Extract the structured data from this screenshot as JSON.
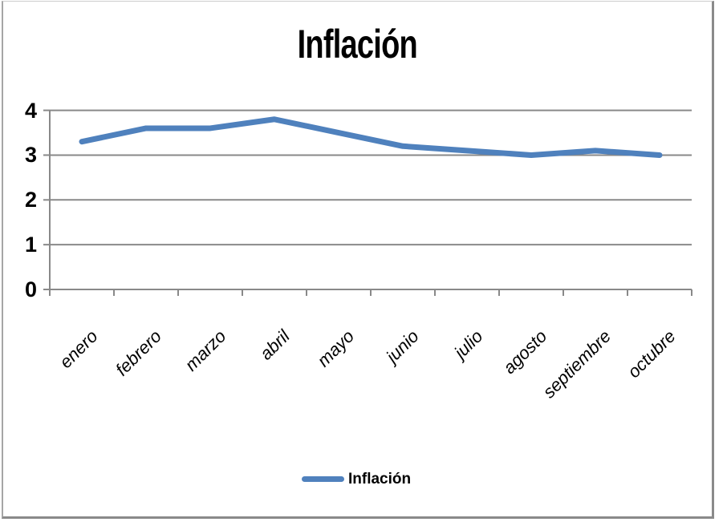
{
  "chart_data": {
    "type": "line",
    "title": "Inflación",
    "categories": [
      "enero",
      "febrero",
      "marzo",
      "abril",
      "mayo",
      "junio",
      "julio",
      "agosto",
      "septiembre",
      "octubre"
    ],
    "series": [
      {
        "name": "Inflación",
        "values": [
          3.3,
          3.6,
          3.6,
          3.8,
          3.5,
          3.2,
          3.1,
          3.0,
          3.1,
          3.0
        ],
        "color": "#4F81BD"
      }
    ],
    "xlabel": "",
    "ylabel": "",
    "ylim": [
      0,
      4
    ],
    "yticks": [
      0,
      1,
      2,
      3,
      4
    ],
    "grid": true,
    "legend_position": "bottom",
    "legend_label": "Inflación"
  },
  "colors": {
    "line": "#4F81BD",
    "grid": "#898989",
    "text": "#000000",
    "frame_border": "#8a8a8a"
  }
}
